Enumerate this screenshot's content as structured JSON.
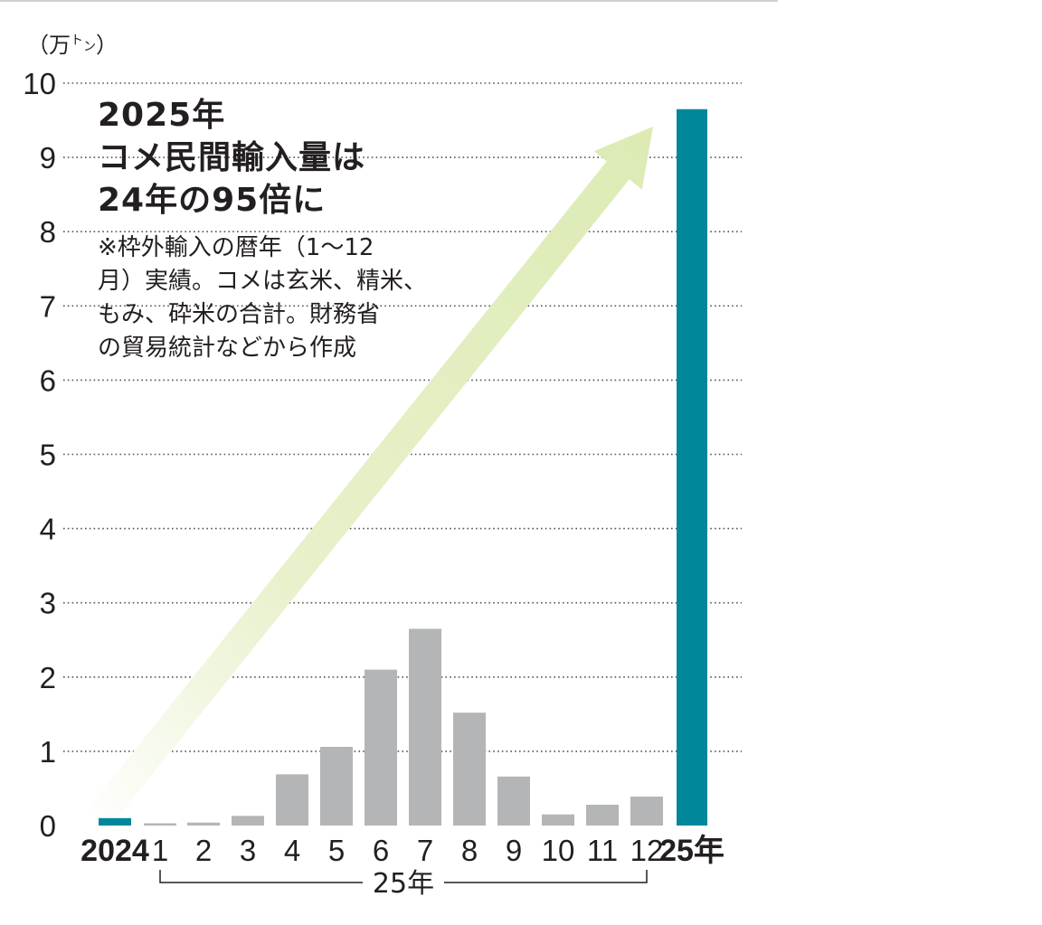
{
  "header": {
    "unit_main": "（万",
    "unit_small": "ト",
    "unit_small2": "ン",
    "unit_close": "）"
  },
  "title_lines": [
    "2025年",
    "コメ民間輸入量は",
    "24年の95倍に"
  ],
  "note_lines": [
    "※枠外輸入の暦年（1～12",
    "月）実績。コメは玄米、精米、",
    "もみ、砕米の合計。財務省",
    "の貿易統計などから作成"
  ],
  "colors": {
    "annual_bar": "#00879a",
    "monthly_bar": "#b4b5b6",
    "arrow": "#dcebb4",
    "grid": "#555555"
  },
  "icons": [
    "growth-arrow"
  ],
  "chart_data": {
    "type": "bar",
    "ylim": [
      0,
      10
    ],
    "yticks": [
      "0",
      "1",
      "2",
      "3",
      "4",
      "5",
      "6",
      "7",
      "8",
      "9",
      "10"
    ],
    "grid": "horizontal dotted",
    "categories": [
      "2024",
      "1",
      "2",
      "3",
      "4",
      "5",
      "6",
      "7",
      "8",
      "9",
      "10",
      "11",
      "12",
      "25年"
    ],
    "values": [
      0.1,
      0.03,
      0.04,
      0.13,
      0.69,
      1.06,
      2.1,
      2.65,
      1.52,
      0.66,
      0.15,
      0.28,
      0.39,
      9.65
    ],
    "bar_kinds": [
      "annual",
      "month",
      "month",
      "month",
      "month",
      "month",
      "month",
      "month",
      "month",
      "month",
      "month",
      "month",
      "month",
      "annual"
    ],
    "group_label": "25年"
  }
}
